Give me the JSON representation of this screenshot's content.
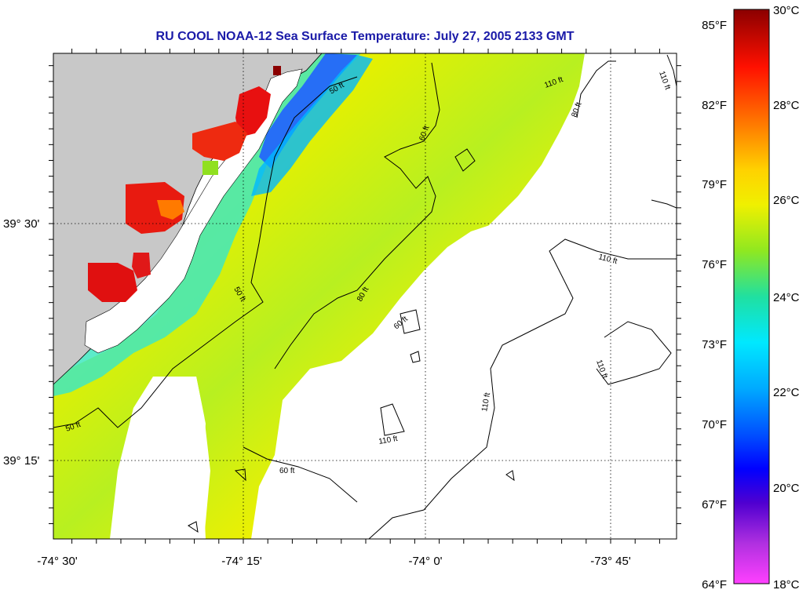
{
  "title": "RU COOL  NOAA-12  Sea Surface Temperature:  July 27, 2005 2133 GMT",
  "lon_ticks": [
    "-74° 30'",
    "-74° 15'",
    "-74° 0'",
    "-73° 45'"
  ],
  "lat_ticks": [
    "39° 30'",
    "39° 15'"
  ],
  "contour_labels": [
    "50 ft",
    "50 ft",
    "50 ft",
    "60 ft",
    "60 ft",
    "60 ft",
    "80 ft",
    "80 ft",
    "110 ft",
    "110 ft",
    "110 ft",
    "110 ft",
    "110 ft",
    "110 ft"
  ],
  "colorbar": {
    "f_labels": [
      "85°F",
      "82°F",
      "79°F",
      "76°F",
      "73°F",
      "70°F",
      "67°F",
      "64°F"
    ],
    "c_labels": [
      "30°C",
      "28°C",
      "26°C",
      "24°C",
      "22°C",
      "20°C",
      "18°C"
    ],
    "colors": [
      "#8b0000",
      "#ff0000",
      "#ff7a00",
      "#ffd200",
      "#f5f500",
      "#7fe030",
      "#20e0a0",
      "#00e8ff",
      "#00aaff",
      "#0050ff",
      "#0000ff",
      "#5000d0",
      "#b030e0",
      "#ff40ff"
    ]
  },
  "colors": {
    "land": "#c8c8c8",
    "title": "#1a1aa8",
    "no_data": "#ffffff"
  }
}
